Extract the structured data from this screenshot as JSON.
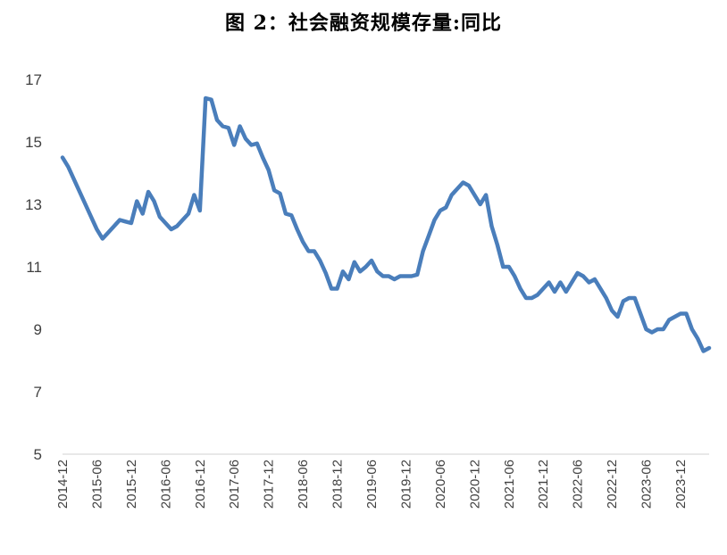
{
  "title": "图 2：社会融资规模存量:同比",
  "chart_data": {
    "type": "line",
    "title": "图 2：社会融资规模存量:同比",
    "xlabel": "",
    "ylabel": "",
    "ylim": [
      5,
      17
    ],
    "yticks": [
      5,
      7,
      9,
      11,
      13,
      15,
      17
    ],
    "xtick_labels": [
      "2014-12",
      "2015-06",
      "2015-12",
      "2016-06",
      "2016-12",
      "2017-06",
      "2017-12",
      "2018-06",
      "2018-12",
      "2019-06",
      "2019-12",
      "2020-06",
      "2020-12",
      "2021-06",
      "2021-12",
      "2022-06",
      "2022-12",
      "2023-06",
      "2023-12"
    ],
    "grid": false,
    "legend": "none",
    "line_color": "#4A7EBB",
    "x": [
      "2014-12",
      "2015-01",
      "2015-02",
      "2015-03",
      "2015-04",
      "2015-05",
      "2015-06",
      "2015-07",
      "2015-08",
      "2015-09",
      "2015-10",
      "2015-11",
      "2015-12",
      "2016-01",
      "2016-02",
      "2016-03",
      "2016-04",
      "2016-05",
      "2016-06",
      "2016-07",
      "2016-08",
      "2016-09",
      "2016-10",
      "2016-11",
      "2016-12",
      "2017-01",
      "2017-02",
      "2017-03",
      "2017-04",
      "2017-05",
      "2017-06",
      "2017-07",
      "2017-08",
      "2017-09",
      "2017-10",
      "2017-11",
      "2017-12",
      "2018-01",
      "2018-02",
      "2018-03",
      "2018-04",
      "2018-05",
      "2018-06",
      "2018-07",
      "2018-08",
      "2018-09",
      "2018-10",
      "2018-11",
      "2018-12",
      "2019-01",
      "2019-02",
      "2019-03",
      "2019-04",
      "2019-05",
      "2019-06",
      "2019-07",
      "2019-08",
      "2019-09",
      "2019-10",
      "2019-11",
      "2019-12",
      "2020-01",
      "2020-02",
      "2020-03",
      "2020-04",
      "2020-05",
      "2020-06",
      "2020-07",
      "2020-08",
      "2020-09",
      "2020-10",
      "2020-11",
      "2020-12",
      "2021-01",
      "2021-02",
      "2021-03",
      "2021-04",
      "2021-05",
      "2021-06",
      "2021-07",
      "2021-08",
      "2021-09",
      "2021-10",
      "2021-11",
      "2021-12",
      "2022-01",
      "2022-02",
      "2022-03",
      "2022-04",
      "2022-05",
      "2022-06",
      "2022-07",
      "2022-08",
      "2022-09",
      "2022-10",
      "2022-11",
      "2022-12",
      "2023-01",
      "2023-02",
      "2023-03",
      "2023-04",
      "2023-05",
      "2023-06",
      "2023-07",
      "2023-08",
      "2023-09",
      "2023-10",
      "2023-11",
      "2023-12",
      "2024-01",
      "2024-02",
      "2024-03",
      "2024-04",
      "2024-05"
    ],
    "series": [
      {
        "values": [
          14.5,
          14.2,
          13.8,
          13.4,
          13.0,
          12.6,
          12.2,
          11.9,
          12.1,
          12.3,
          12.5,
          12.45,
          12.4,
          13.1,
          12.7,
          13.4,
          13.1,
          12.6,
          12.4,
          12.2,
          12.3,
          12.5,
          12.7,
          13.3,
          12.8,
          16.4,
          16.35,
          15.7,
          15.5,
          15.45,
          14.9,
          15.5,
          15.1,
          14.9,
          14.95,
          14.5,
          14.1,
          13.45,
          13.35,
          12.7,
          12.65,
          12.2,
          11.8,
          11.5,
          11.5,
          11.2,
          10.8,
          10.3,
          10.3,
          10.85,
          10.6,
          11.15,
          10.85,
          11.0,
          11.2,
          10.85,
          10.7,
          10.7,
          10.6,
          10.7,
          10.7,
          10.7,
          10.75,
          11.5,
          12.0,
          12.5,
          12.8,
          12.9,
          13.3,
          13.5,
          13.7,
          13.6,
          13.3,
          13.0,
          13.3,
          12.3,
          11.7,
          11.0,
          11.0,
          10.7,
          10.3,
          10.0,
          10.0,
          10.1,
          10.3,
          10.5,
          10.2,
          10.5,
          10.2,
          10.5,
          10.8,
          10.7,
          10.5,
          10.6,
          10.3,
          10.0,
          9.6,
          9.4,
          9.9,
          10.0,
          10.0,
          9.5,
          9.0,
          8.9,
          9.0,
          9.0,
          9.3,
          9.4,
          9.5,
          9.5,
          9.0,
          8.7,
          8.3,
          8.4
        ]
      }
    ]
  }
}
